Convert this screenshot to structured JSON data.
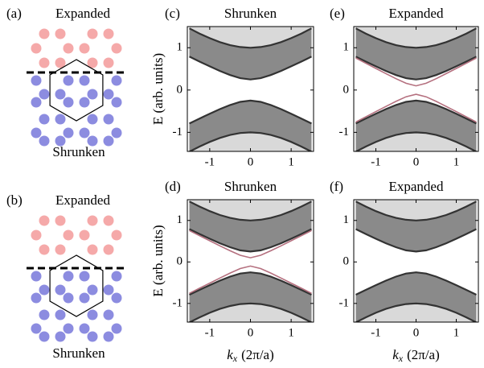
{
  "schematics": [
    {
      "label": "(a)",
      "top": "Expanded",
      "bottom": "Shrunken"
    },
    {
      "label": "(b)",
      "top": "Expanded",
      "bottom": "Shrunken"
    }
  ],
  "chart_data": [
    {
      "type": "band",
      "panel": "(c)",
      "title": "Shrunken",
      "ylabel": "E (arb. units)",
      "x": [
        -1.5,
        -1.25,
        -1,
        -0.75,
        -0.5,
        -0.25,
        0,
        0.25,
        0.5,
        0.75,
        1,
        1.25,
        1.5
      ],
      "bands": [
        {
          "inner": [
            0.791,
            0.673,
            0.559,
            0.451,
            0.354,
            0.28,
            0.25,
            0.28,
            0.354,
            0.451,
            0.559,
            0.673,
            0.791
          ],
          "outer": [
            1.458,
            1.335,
            1.225,
            1.132,
            1.061,
            1.016,
            1,
            1.016,
            1.061,
            1.132,
            1.225,
            1.335,
            1.458
          ]
        },
        {
          "inner": [
            -0.791,
            -0.673,
            -0.559,
            -0.451,
            -0.354,
            -0.28,
            -0.25,
            -0.28,
            -0.354,
            -0.451,
            -0.559,
            -0.673,
            -0.791
          ],
          "outer": [
            -1.458,
            -1.335,
            -1.225,
            -1.132,
            -1.061,
            -1.016,
            -1,
            -1.016,
            -1.061,
            -1.132,
            -1.225,
            -1.335,
            -1.458
          ]
        }
      ],
      "edge_states": [],
      "band_color": "#8a8a8a",
      "outer_color": "#d9d9d9",
      "edge_color": "#333333",
      "state_color": "#b5707f",
      "xlim": [
        -1.55,
        1.55
      ],
      "ylim": [
        -1.45,
        1.5
      ],
      "xticks": [
        -1,
        0,
        1
      ],
      "yticks": [
        -1,
        0,
        1
      ]
    },
    {
      "type": "band",
      "panel": "(d)",
      "title": "Shrunken",
      "ylabel": "E (arb. units)",
      "xlabel": {
        "symbol": "k",
        "subscript": "x",
        "unit": "(2π/a)"
      },
      "x": [
        -1.5,
        -1.25,
        -1,
        -0.75,
        -0.5,
        -0.25,
        0,
        0.25,
        0.5,
        0.75,
        1,
        1.25,
        1.5
      ],
      "bands": [
        {
          "inner": [
            0.791,
            0.673,
            0.559,
            0.451,
            0.354,
            0.28,
            0.25,
            0.28,
            0.354,
            0.451,
            0.559,
            0.673,
            0.791
          ],
          "outer": [
            1.458,
            1.335,
            1.225,
            1.132,
            1.061,
            1.016,
            1,
            1.016,
            1.061,
            1.132,
            1.225,
            1.335,
            1.458
          ]
        },
        {
          "inner": [
            -0.791,
            -0.673,
            -0.559,
            -0.451,
            -0.354,
            -0.28,
            -0.25,
            -0.28,
            -0.354,
            -0.451,
            -0.559,
            -0.673,
            -0.791
          ],
          "outer": [
            -1.458,
            -1.335,
            -1.225,
            -1.132,
            -1.061,
            -1.016,
            -1,
            -1.016,
            -1.061,
            -1.132,
            -1.225,
            -1.335,
            -1.458
          ]
        }
      ],
      "edge_states": [
        [
          0.757,
          0.633,
          0.51,
          0.388,
          0.269,
          0.16,
          0.1,
          0.16,
          0.269,
          0.388,
          0.51,
          0.633,
          0.757
        ],
        [
          -0.757,
          -0.633,
          -0.51,
          -0.388,
          -0.269,
          -0.16,
          -0.1,
          -0.16,
          -0.269,
          -0.388,
          -0.51,
          -0.633,
          -0.757
        ]
      ],
      "band_color": "#8a8a8a",
      "outer_color": "#d9d9d9",
      "edge_color": "#333333",
      "state_color": "#b5707f",
      "xlim": [
        -1.55,
        1.55
      ],
      "ylim": [
        -1.45,
        1.5
      ],
      "xticks": [
        -1,
        0,
        1
      ],
      "yticks": [
        -1,
        0,
        1
      ]
    },
    {
      "type": "band",
      "panel": "(e)",
      "title": "Expanded",
      "x": [
        -1.5,
        -1.25,
        -1,
        -0.75,
        -0.5,
        -0.25,
        0,
        0.25,
        0.5,
        0.75,
        1,
        1.25,
        1.5
      ],
      "bands": [
        {
          "inner": [
            0.791,
            0.673,
            0.559,
            0.451,
            0.354,
            0.28,
            0.25,
            0.28,
            0.354,
            0.451,
            0.559,
            0.673,
            0.791
          ],
          "outer": [
            1.458,
            1.335,
            1.225,
            1.132,
            1.061,
            1.016,
            1,
            1.016,
            1.061,
            1.132,
            1.225,
            1.335,
            1.458
          ]
        },
        {
          "inner": [
            -0.791,
            -0.673,
            -0.559,
            -0.451,
            -0.354,
            -0.28,
            -0.25,
            -0.28,
            -0.354,
            -0.451,
            -0.559,
            -0.673,
            -0.791
          ],
          "outer": [
            -1.458,
            -1.335,
            -1.225,
            -1.132,
            -1.061,
            -1.016,
            -1,
            -1.016,
            -1.061,
            -1.132,
            -1.225,
            -1.335,
            -1.458
          ]
        }
      ],
      "edge_states": [
        [
          0.757,
          0.633,
          0.51,
          0.388,
          0.269,
          0.16,
          0.1,
          0.16,
          0.269,
          0.388,
          0.51,
          0.633,
          0.757
        ],
        [
          -0.757,
          -0.633,
          -0.51,
          -0.388,
          -0.269,
          -0.16,
          -0.1,
          -0.16,
          -0.269,
          -0.388,
          -0.51,
          -0.633,
          -0.757
        ]
      ],
      "band_color": "#8a8a8a",
      "outer_color": "#d9d9d9",
      "edge_color": "#333333",
      "state_color": "#b5707f",
      "xlim": [
        -1.55,
        1.55
      ],
      "ylim": [
        -1.45,
        1.5
      ],
      "xticks": [
        -1,
        0,
        1
      ],
      "yticks": [
        -1,
        0,
        1
      ]
    },
    {
      "type": "band",
      "panel": "(f)",
      "title": "Expanded",
      "xlabel": {
        "symbol": "k",
        "subscript": "x",
        "unit": "(2π/a)"
      },
      "x": [
        -1.5,
        -1.25,
        -1,
        -0.75,
        -0.5,
        -0.25,
        0,
        0.25,
        0.5,
        0.75,
        1,
        1.25,
        1.5
      ],
      "bands": [
        {
          "inner": [
            0.791,
            0.673,
            0.559,
            0.451,
            0.354,
            0.28,
            0.25,
            0.28,
            0.354,
            0.451,
            0.559,
            0.673,
            0.791
          ],
          "outer": [
            1.458,
            1.335,
            1.225,
            1.132,
            1.061,
            1.016,
            1,
            1.016,
            1.061,
            1.132,
            1.225,
            1.335,
            1.458
          ]
        },
        {
          "inner": [
            -0.791,
            -0.673,
            -0.559,
            -0.451,
            -0.354,
            -0.28,
            -0.25,
            -0.28,
            -0.354,
            -0.451,
            -0.559,
            -0.673,
            -0.791
          ],
          "outer": [
            -1.458,
            -1.335,
            -1.225,
            -1.132,
            -1.061,
            -1.016,
            -1,
            -1.016,
            -1.061,
            -1.132,
            -1.225,
            -1.335,
            -1.458
          ]
        }
      ],
      "edge_states": [],
      "band_color": "#8a8a8a",
      "outer_color": "#d9d9d9",
      "edge_color": "#333333",
      "state_color": "#b5707f",
      "xlim": [
        -1.55,
        1.55
      ],
      "ylim": [
        -1.45,
        1.5
      ],
      "xticks": [
        -1,
        0,
        1
      ],
      "yticks": [
        -1,
        0,
        1
      ]
    }
  ]
}
